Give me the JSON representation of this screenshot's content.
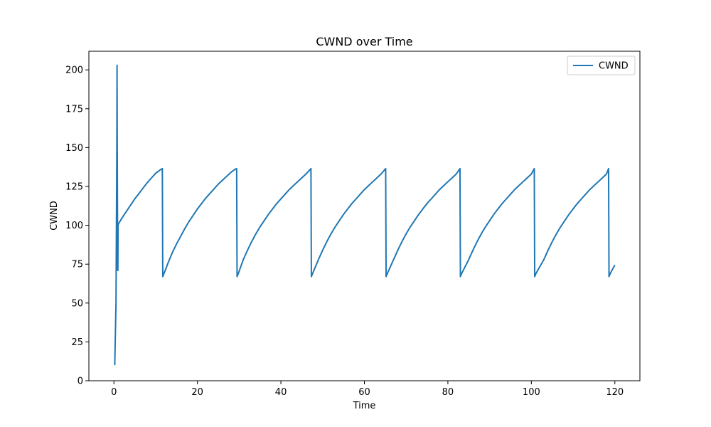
{
  "chart_data": {
    "type": "line",
    "title": "CWND over Time",
    "xlabel": "Time",
    "ylabel": "CWND",
    "xlim": [
      -6,
      126
    ],
    "ylim": [
      0,
      212
    ],
    "xticks": [
      0,
      20,
      40,
      60,
      80,
      100,
      120
    ],
    "yticks": [
      0,
      25,
      50,
      75,
      100,
      125,
      150,
      175,
      200
    ],
    "grid": false,
    "legend": {
      "position": "upper-right",
      "entries": [
        "CWND"
      ]
    },
    "series": [
      {
        "name": "CWND",
        "color": "#1f77b4",
        "x": [
          0.2,
          0.5,
          0.7,
          0.75,
          0.8,
          0.9,
          0.95,
          1.0,
          1.1,
          2,
          3,
          4,
          5,
          6,
          7,
          8,
          9,
          10,
          11,
          11.6,
          11.7,
          12.0,
          13,
          14,
          15,
          16,
          17,
          18,
          19,
          20,
          21,
          22,
          23,
          24,
          25,
          26,
          27,
          28,
          29,
          29.4,
          29.5,
          29.8,
          31,
          32,
          33,
          34,
          35,
          36,
          37,
          38,
          39,
          40,
          41,
          42,
          43,
          44,
          45,
          46,
          47.2,
          47.3,
          47.6,
          49,
          50,
          51,
          52,
          53,
          54,
          55,
          56,
          57,
          58,
          59,
          60,
          61,
          62,
          63,
          64,
          65.1,
          65.2,
          65.5,
          67,
          68,
          69,
          70,
          71,
          72,
          73,
          74,
          75,
          76,
          77,
          78,
          79,
          80,
          81,
          82,
          82.9,
          83.0,
          83.3,
          85,
          86,
          87,
          88,
          89,
          90,
          91,
          92,
          93,
          94,
          95,
          96,
          97,
          98,
          99,
          100,
          100.7,
          100.8,
          101.1,
          103,
          104,
          105,
          106,
          107,
          108,
          109,
          110,
          111,
          112,
          113,
          114,
          115,
          116,
          117,
          118,
          118.5,
          118.6,
          118.9,
          120
        ],
        "values": [
          10,
          50,
          150,
          203,
          150,
          71,
          71,
          100,
          101,
          105,
          109,
          113,
          117,
          120.5,
          124,
          127.5,
          130.5,
          133.5,
          135.5,
          136.5,
          67,
          69,
          76,
          82.5,
          88,
          93,
          98,
          102.5,
          106.5,
          110.5,
          114,
          117.5,
          120.5,
          123.5,
          126.5,
          129,
          131.5,
          134,
          136,
          136.5,
          67,
          69,
          78,
          84,
          89.5,
          94.5,
          99,
          103,
          107,
          110.5,
          114,
          117,
          120,
          123,
          125.5,
          128,
          130.5,
          133,
          136.5,
          67,
          69,
          78,
          84,
          89.5,
          94.5,
          99,
          103,
          107,
          110.5,
          114,
          117,
          120,
          123,
          125.5,
          128,
          130.5,
          133,
          136.5,
          67,
          69,
          78,
          84,
          89.5,
          94.5,
          99,
          103,
          107,
          110.5,
          114,
          117,
          120,
          123,
          125.5,
          128,
          130.5,
          133,
          136.5,
          67,
          69,
          78,
          84,
          89.5,
          94.5,
          99,
          103,
          107,
          110.5,
          114,
          117,
          120,
          123,
          125.5,
          128,
          130.5,
          133,
          136.5,
          67,
          69,
          78,
          84,
          89.5,
          94.5,
          99,
          103,
          107,
          110.5,
          114,
          117,
          120,
          123,
          125.5,
          128,
          130.5,
          133,
          136.5,
          67,
          69,
          74.5
        ]
      }
    ]
  }
}
